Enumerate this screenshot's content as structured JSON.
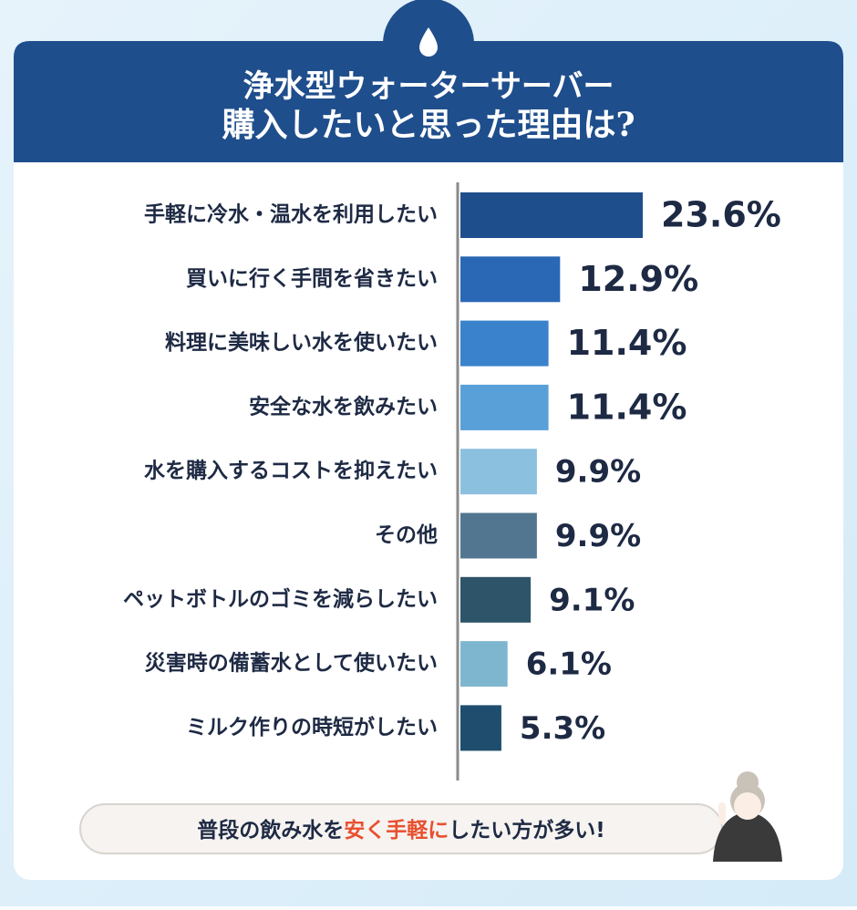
{
  "chart_data": {
    "type": "bar",
    "orientation": "horizontal",
    "title_lines": [
      "浄水型ウォーターサーバー",
      "購入したいと思った理由は?"
    ],
    "categories": [
      "手軽に冷水・温水を利用したい",
      "買いに行く手間を省きたい",
      "料理に美味しい水を使いたい",
      "安全な水を飲みたい",
      "水を購入するコストを抑えたい",
      "その他",
      "ペットボトルのゴミを減らしたい",
      "災害時の備蓄水として使いたい",
      "ミルク作りの時短がしたい"
    ],
    "values": [
      23.6,
      12.9,
      11.4,
      11.4,
      9.9,
      9.9,
      9.1,
      6.1,
      5.3
    ],
    "value_labels": [
      "23.6%",
      "12.9%",
      "11.4%",
      "11.4%",
      "9.9%",
      "9.9%",
      "9.1%",
      "6.1%",
      "5.3%"
    ],
    "colors": [
      "#1f4e8c",
      "#2a68b5",
      "#3a82cc",
      "#5aa0d8",
      "#8cc0df",
      "#52768f",
      "#2e5469",
      "#7fb6cf",
      "#1e4d6e"
    ],
    "footer": [
      "普段の飲み水を",
      "安く手軽に",
      "したい方が多い!"
    ]
  }
}
